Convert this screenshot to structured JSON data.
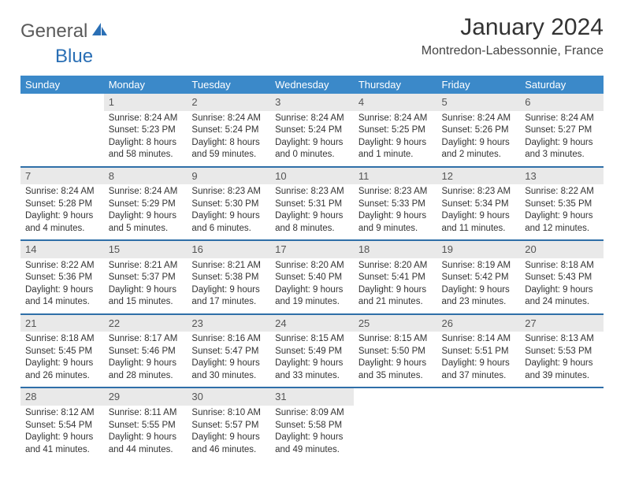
{
  "logo": {
    "text1": "General",
    "text2": "Blue"
  },
  "title": "January 2024",
  "location": "Montredon-Labessonnie, France",
  "dayHeaders": [
    "Sunday",
    "Monday",
    "Tuesday",
    "Wednesday",
    "Thursday",
    "Friday",
    "Saturday"
  ],
  "colors": {
    "headerBg": "#3b89c9",
    "weekRule": "#2f6fa8",
    "daynumBg": "#e9e9e9",
    "logoBlue": "#2a6fb5"
  },
  "weeks": [
    [
      {
        "num": "",
        "lines": []
      },
      {
        "num": "1",
        "lines": [
          "Sunrise: 8:24 AM",
          "Sunset: 5:23 PM",
          "Daylight: 8 hours",
          "and 58 minutes."
        ]
      },
      {
        "num": "2",
        "lines": [
          "Sunrise: 8:24 AM",
          "Sunset: 5:24 PM",
          "Daylight: 8 hours",
          "and 59 minutes."
        ]
      },
      {
        "num": "3",
        "lines": [
          "Sunrise: 8:24 AM",
          "Sunset: 5:24 PM",
          "Daylight: 9 hours",
          "and 0 minutes."
        ]
      },
      {
        "num": "4",
        "lines": [
          "Sunrise: 8:24 AM",
          "Sunset: 5:25 PM",
          "Daylight: 9 hours",
          "and 1 minute."
        ]
      },
      {
        "num": "5",
        "lines": [
          "Sunrise: 8:24 AM",
          "Sunset: 5:26 PM",
          "Daylight: 9 hours",
          "and 2 minutes."
        ]
      },
      {
        "num": "6",
        "lines": [
          "Sunrise: 8:24 AM",
          "Sunset: 5:27 PM",
          "Daylight: 9 hours",
          "and 3 minutes."
        ]
      }
    ],
    [
      {
        "num": "7",
        "lines": [
          "Sunrise: 8:24 AM",
          "Sunset: 5:28 PM",
          "Daylight: 9 hours",
          "and 4 minutes."
        ]
      },
      {
        "num": "8",
        "lines": [
          "Sunrise: 8:24 AM",
          "Sunset: 5:29 PM",
          "Daylight: 9 hours",
          "and 5 minutes."
        ]
      },
      {
        "num": "9",
        "lines": [
          "Sunrise: 8:23 AM",
          "Sunset: 5:30 PM",
          "Daylight: 9 hours",
          "and 6 minutes."
        ]
      },
      {
        "num": "10",
        "lines": [
          "Sunrise: 8:23 AM",
          "Sunset: 5:31 PM",
          "Daylight: 9 hours",
          "and 8 minutes."
        ]
      },
      {
        "num": "11",
        "lines": [
          "Sunrise: 8:23 AM",
          "Sunset: 5:33 PM",
          "Daylight: 9 hours",
          "and 9 minutes."
        ]
      },
      {
        "num": "12",
        "lines": [
          "Sunrise: 8:23 AM",
          "Sunset: 5:34 PM",
          "Daylight: 9 hours",
          "and 11 minutes."
        ]
      },
      {
        "num": "13",
        "lines": [
          "Sunrise: 8:22 AM",
          "Sunset: 5:35 PM",
          "Daylight: 9 hours",
          "and 12 minutes."
        ]
      }
    ],
    [
      {
        "num": "14",
        "lines": [
          "Sunrise: 8:22 AM",
          "Sunset: 5:36 PM",
          "Daylight: 9 hours",
          "and 14 minutes."
        ]
      },
      {
        "num": "15",
        "lines": [
          "Sunrise: 8:21 AM",
          "Sunset: 5:37 PM",
          "Daylight: 9 hours",
          "and 15 minutes."
        ]
      },
      {
        "num": "16",
        "lines": [
          "Sunrise: 8:21 AM",
          "Sunset: 5:38 PM",
          "Daylight: 9 hours",
          "and 17 minutes."
        ]
      },
      {
        "num": "17",
        "lines": [
          "Sunrise: 8:20 AM",
          "Sunset: 5:40 PM",
          "Daylight: 9 hours",
          "and 19 minutes."
        ]
      },
      {
        "num": "18",
        "lines": [
          "Sunrise: 8:20 AM",
          "Sunset: 5:41 PM",
          "Daylight: 9 hours",
          "and 21 minutes."
        ]
      },
      {
        "num": "19",
        "lines": [
          "Sunrise: 8:19 AM",
          "Sunset: 5:42 PM",
          "Daylight: 9 hours",
          "and 23 minutes."
        ]
      },
      {
        "num": "20",
        "lines": [
          "Sunrise: 8:18 AM",
          "Sunset: 5:43 PM",
          "Daylight: 9 hours",
          "and 24 minutes."
        ]
      }
    ],
    [
      {
        "num": "21",
        "lines": [
          "Sunrise: 8:18 AM",
          "Sunset: 5:45 PM",
          "Daylight: 9 hours",
          "and 26 minutes."
        ]
      },
      {
        "num": "22",
        "lines": [
          "Sunrise: 8:17 AM",
          "Sunset: 5:46 PM",
          "Daylight: 9 hours",
          "and 28 minutes."
        ]
      },
      {
        "num": "23",
        "lines": [
          "Sunrise: 8:16 AM",
          "Sunset: 5:47 PM",
          "Daylight: 9 hours",
          "and 30 minutes."
        ]
      },
      {
        "num": "24",
        "lines": [
          "Sunrise: 8:15 AM",
          "Sunset: 5:49 PM",
          "Daylight: 9 hours",
          "and 33 minutes."
        ]
      },
      {
        "num": "25",
        "lines": [
          "Sunrise: 8:15 AM",
          "Sunset: 5:50 PM",
          "Daylight: 9 hours",
          "and 35 minutes."
        ]
      },
      {
        "num": "26",
        "lines": [
          "Sunrise: 8:14 AM",
          "Sunset: 5:51 PM",
          "Daylight: 9 hours",
          "and 37 minutes."
        ]
      },
      {
        "num": "27",
        "lines": [
          "Sunrise: 8:13 AM",
          "Sunset: 5:53 PM",
          "Daylight: 9 hours",
          "and 39 minutes."
        ]
      }
    ],
    [
      {
        "num": "28",
        "lines": [
          "Sunrise: 8:12 AM",
          "Sunset: 5:54 PM",
          "Daylight: 9 hours",
          "and 41 minutes."
        ]
      },
      {
        "num": "29",
        "lines": [
          "Sunrise: 8:11 AM",
          "Sunset: 5:55 PM",
          "Daylight: 9 hours",
          "and 44 minutes."
        ]
      },
      {
        "num": "30",
        "lines": [
          "Sunrise: 8:10 AM",
          "Sunset: 5:57 PM",
          "Daylight: 9 hours",
          "and 46 minutes."
        ]
      },
      {
        "num": "31",
        "lines": [
          "Sunrise: 8:09 AM",
          "Sunset: 5:58 PM",
          "Daylight: 9 hours",
          "and 49 minutes."
        ]
      },
      {
        "num": "",
        "lines": []
      },
      {
        "num": "",
        "lines": []
      },
      {
        "num": "",
        "lines": []
      }
    ]
  ]
}
